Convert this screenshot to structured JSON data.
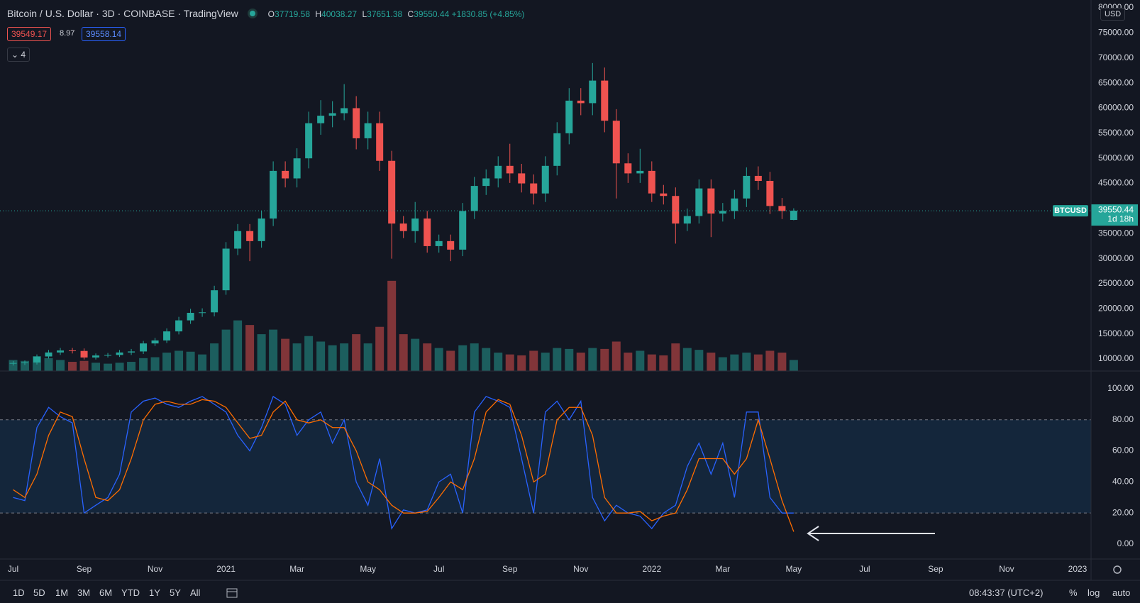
{
  "header": {
    "title": "Bitcoin / U.S. Dollar · 3D · COINBASE · TradingView",
    "ohlc_labels": [
      "O",
      "H",
      "L",
      "C"
    ],
    "change": "+1830.85 (+4.85%)",
    "sell": "39549.17",
    "spread": "8.97",
    "buy": "39558.14",
    "indicators": "4",
    "currency": "USD",
    "countdown": "1d 18h"
  },
  "toolbar": {
    "ranges": [
      "1D",
      "5D",
      "1M",
      "3M",
      "6M",
      "YTD",
      "1Y",
      "5Y",
      "All"
    ],
    "clock": "08:43:37 (UTC+2)",
    "percent": "%",
    "log": "log",
    "auto": "auto"
  },
  "chart_data": [
    {
      "type": "candlestick",
      "last_price_label": "BTCUSD",
      "up_color": "#26a69a",
      "down_color": "#ef5350",
      "x": [
        0,
        0.33,
        0.67,
        1,
        1.33,
        1.67,
        2,
        2.33,
        2.67,
        3,
        3.33,
        3.67,
        4,
        4.33,
        4.67,
        5,
        5.33,
        5.67,
        6,
        6.33,
        6.67,
        7,
        7.33,
        7.67,
        8,
        8.33,
        8.67,
        9,
        9.33,
        9.67,
        10,
        10.33,
        10.67,
        11,
        11.33,
        11.67,
        12,
        12.33,
        12.67,
        13,
        13.33,
        13.67,
        14,
        14.33,
        14.67,
        15,
        15.33,
        15.67,
        16,
        16.33,
        16.67,
        17,
        17.33,
        17.67,
        18,
        18.33,
        18.67,
        19,
        19.33,
        19.67,
        20,
        20.33,
        20.67,
        21,
        21.33,
        21.67,
        22
      ],
      "open": [
        9100,
        9200,
        9300,
        10500,
        11300,
        11700,
        11600,
        10300,
        10700,
        10800,
        11300,
        11500,
        13100,
        13700,
        15500,
        17700,
        19200,
        19300,
        23700,
        32000,
        35500,
        33500,
        38000,
        47500,
        46000,
        50000,
        57000,
        58500,
        59000,
        60000,
        54000,
        57000,
        49500,
        37000,
        35500,
        38000,
        32500,
        33500,
        31800,
        39500,
        44500,
        46000,
        48500,
        47000,
        45000,
        43000,
        48500,
        55000,
        61500,
        61000,
        65500,
        57500,
        49000,
        47000,
        47500,
        43000,
        42500,
        37000,
        38500,
        44000,
        39000,
        39500,
        42000,
        46500,
        45500,
        40500,
        37719.58
      ],
      "high": [
        9600,
        9700,
        10900,
        11800,
        12200,
        12200,
        12100,
        11100,
        11200,
        11800,
        12000,
        13600,
        14200,
        16100,
        18400,
        20000,
        20100,
        24600,
        33300,
        36900,
        36900,
        39500,
        49400,
        49400,
        52000,
        59300,
        61600,
        61400,
        64800,
        62400,
        59300,
        59300,
        51500,
        38500,
        41300,
        39500,
        34800,
        34800,
        41100,
        46300,
        47800,
        50400,
        52900,
        48900,
        46800,
        50400,
        57200,
        64000,
        64000,
        69000,
        68100,
        59800,
        51000,
        51900,
        49400,
        44700,
        44200,
        40000,
        45800,
        45800,
        41100,
        43700,
        48200,
        48400,
        47300,
        42100,
        40038.27
      ],
      "low": [
        8700,
        8800,
        8900,
        10100,
        10800,
        11100,
        9900,
        9900,
        10300,
        10400,
        10800,
        11000,
        12600,
        13200,
        14900,
        17000,
        18400,
        18500,
        22800,
        30700,
        29500,
        32200,
        36500,
        44200,
        44200,
        48000,
        54700,
        56200,
        57600,
        51800,
        51800,
        47500,
        30000,
        34100,
        33200,
        31200,
        31200,
        29500,
        30500,
        37900,
        42700,
        44200,
        45100,
        43200,
        40800,
        41300,
        46600,
        52800,
        58600,
        58600,
        55200,
        42000,
        45100,
        45100,
        41300,
        40800,
        33000,
        35500,
        37000,
        34300,
        37400,
        37900,
        40300,
        43700,
        38900,
        37900,
        37651.38
      ],
      "close": [
        9200,
        9300,
        10500,
        11300,
        11700,
        11600,
        10300,
        10700,
        10800,
        11300,
        11500,
        13100,
        13700,
        15500,
        17700,
        19200,
        19300,
        23700,
        32000,
        35500,
        33500,
        38000,
        47500,
        46000,
        50000,
        57000,
        58500,
        59000,
        60000,
        54000,
        57000,
        49500,
        37000,
        35500,
        38000,
        32500,
        33500,
        31800,
        39500,
        44500,
        46000,
        48500,
        47000,
        45000,
        43000,
        48500,
        55000,
        61500,
        61000,
        65500,
        57500,
        49000,
        47000,
        47500,
        43000,
        42500,
        37000,
        38500,
        44000,
        39000,
        39500,
        42000,
        46500,
        45500,
        40500,
        39500,
        39550.44
      ],
      "volume": [
        12000,
        11000,
        16000,
        14000,
        12000,
        10000,
        11000,
        9000,
        8000,
        9000,
        10000,
        14000,
        15000,
        20000,
        22000,
        21000,
        18000,
        30000,
        45000,
        55000,
        50000,
        40000,
        45000,
        35000,
        30000,
        38000,
        32000,
        28000,
        30000,
        40000,
        30000,
        48000,
        98000,
        40000,
        35000,
        30000,
        25000,
        22000,
        28000,
        30000,
        25000,
        20000,
        18000,
        17000,
        22000,
        20000,
        25000,
        24000,
        20000,
        25000,
        24000,
        32000,
        20000,
        22000,
        18000,
        17000,
        30000,
        25000,
        23000,
        20000,
        15000,
        18000,
        20000,
        18000,
        22000,
        20000,
        12000
      ],
      "volume_ylim": [
        0,
        400000
      ],
      "xlim": [
        -0.37,
        30.38
      ],
      "ylim": [
        7600,
        81000
      ],
      "yticks": [
        {
          "value": 10000,
          "label": "10000.00"
        },
        {
          "value": 15000,
          "label": "15000.00"
        },
        {
          "value": 20000,
          "label": "20000.00"
        },
        {
          "value": 25000,
          "label": "25000.00"
        },
        {
          "value": 30000,
          "label": "30000.00"
        },
        {
          "value": 35000,
          "label": "35000.00"
        },
        {
          "value": 40000,
          "label": "40000.00"
        },
        {
          "value": 45000,
          "label": "45000.00"
        },
        {
          "value": 50000,
          "label": "50000.00"
        },
        {
          "value": 55000,
          "label": "55000.00"
        },
        {
          "value": 60000,
          "label": "60000.00"
        },
        {
          "value": 65000,
          "label": "65000.00"
        },
        {
          "value": 70000,
          "label": "70000.00"
        },
        {
          "value": 75000,
          "label": "75000.00"
        },
        {
          "value": 80000,
          "label": "80000.00"
        }
      ]
    },
    {
      "type": "line",
      "band": [
        20,
        80
      ],
      "x": [
        0,
        0.33,
        0.67,
        1,
        1.33,
        1.67,
        2,
        2.33,
        2.67,
        3,
        3.33,
        3.67,
        4,
        4.33,
        4.67,
        5,
        5.33,
        5.67,
        6,
        6.33,
        6.67,
        7,
        7.33,
        7.67,
        8,
        8.33,
        8.67,
        9,
        9.33,
        9.67,
        10,
        10.33,
        10.67,
        11,
        11.33,
        11.67,
        12,
        12.33,
        12.67,
        13,
        13.33,
        13.67,
        14,
        14.33,
        14.67,
        15,
        15.33,
        15.67,
        16,
        16.33,
        16.67,
        17,
        17.33,
        17.67,
        18,
        18.33,
        18.67,
        19,
        19.33,
        19.67,
        20,
        20.33,
        20.67,
        21,
        21.33,
        21.67,
        22
      ],
      "series": [
        {
          "color": "#2962ff",
          "values": [
            30,
            28,
            75,
            88,
            82,
            78,
            20,
            25,
            30,
            45,
            85,
            92,
            94,
            90,
            88,
            92,
            95,
            90,
            85,
            70,
            60,
            75,
            95,
            90,
            70,
            80,
            85,
            65,
            80,
            40,
            25,
            55,
            10,
            22,
            20,
            22,
            40,
            45,
            20,
            85,
            95,
            92,
            88,
            55,
            20,
            85,
            92,
            80,
            92,
            30,
            15,
            25,
            20,
            18,
            10,
            20,
            25,
            50,
            65,
            45,
            65,
            30,
            85,
            85,
            30,
            20,
            20
          ]
        },
        {
          "color": "#ff6d00",
          "values": [
            35,
            30,
            45,
            70,
            85,
            82,
            55,
            30,
            28,
            35,
            55,
            80,
            90,
            92,
            90,
            90,
            93,
            92,
            88,
            78,
            68,
            70,
            85,
            92,
            80,
            78,
            80,
            75,
            75,
            60,
            40,
            35,
            25,
            20,
            20,
            21,
            30,
            40,
            35,
            55,
            85,
            93,
            90,
            70,
            40,
            45,
            80,
            88,
            88,
            70,
            30,
            20,
            20,
            21,
            15,
            18,
            20,
            35,
            55,
            55,
            55,
            45,
            55,
            80,
            55,
            28,
            8
          ]
        }
      ],
      "xlim": [
        -0.37,
        30.38
      ],
      "ylim": [
        -9.6,
        111.4
      ],
      "yticks": [
        {
          "value": 0,
          "label": "0.00"
        },
        {
          "value": 20,
          "label": "20.00"
        },
        {
          "value": 40,
          "label": "40.00"
        },
        {
          "value": 60,
          "label": "60.00"
        },
        {
          "value": 80,
          "label": "80.00"
        },
        {
          "value": 100,
          "label": "100.00"
        }
      ],
      "xticks": [
        {
          "value": 0,
          "label": "Jul"
        },
        {
          "value": 2,
          "label": "Sep"
        },
        {
          "value": 4,
          "label": "Nov"
        },
        {
          "value": 6,
          "label": "2021"
        },
        {
          "value": 8,
          "label": "Mar"
        },
        {
          "value": 10,
          "label": "May"
        },
        {
          "value": 12,
          "label": "Jul"
        },
        {
          "value": 14,
          "label": "Sep"
        },
        {
          "value": 16,
          "label": "Nov"
        },
        {
          "value": 18,
          "label": "2022"
        },
        {
          "value": 20,
          "label": "Mar"
        },
        {
          "value": 22,
          "label": "May"
        },
        {
          "value": 24,
          "label": "Jul"
        },
        {
          "value": 26,
          "label": "Sep"
        },
        {
          "value": 28,
          "label": "Nov"
        },
        {
          "value": 30,
          "label": "2023"
        }
      ]
    }
  ]
}
